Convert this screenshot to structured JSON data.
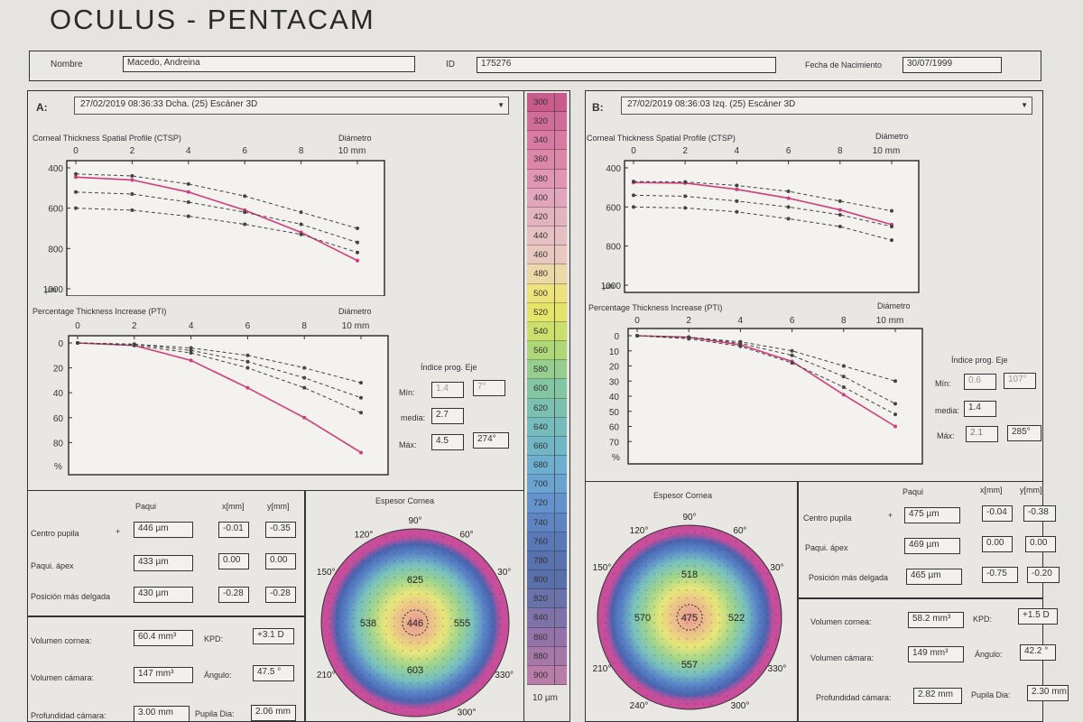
{
  "header": {
    "title": "OCULUS - PENTACAM",
    "nombre_label": "Nombre",
    "nombre_value": "Macedo, Andreina",
    "id_label": "ID",
    "id_value": "175276",
    "fecha_label": "Fecha de Nacimiento",
    "fecha_value": "30/07/1999"
  },
  "panelA": {
    "letter": "A:",
    "scan": "27/02/2019 08:36:33 Dcha.   (25) Escáner 3D",
    "ctsp_title": "Corneal Thickness Spatial Profile (CTSP)",
    "pti_title": "Percentage Thickness Increase (PTI)",
    "diam_label": "Diámetro",
    "diam_unit": "10 mm",
    "um": "µm",
    "pct": "%",
    "indice_label": "Índice prog.  Eje",
    "min_label": "Mín:",
    "min_val": "1.4",
    "min_eje": "7°",
    "media_label": "media:",
    "media_val": "2.7",
    "max_label": "Máx:",
    "max_val": "4.5",
    "max_eje": "274°",
    "paqui_head": "Paqui",
    "x_head": "x[mm]",
    "y_head": "y[mm]",
    "centro_label": "Centro pupila",
    "plus": "+",
    "centro_paqui": "446 µm",
    "centro_x": "-0.01",
    "centro_y": "-0.35",
    "apex_label": "Paqui. ápex",
    "apex_paqui": "433 µm",
    "apex_x": "0.00",
    "apex_y": "0.00",
    "delgada_label": "Posición más delgada",
    "delgada_paqui": "430 µm",
    "delgada_x": "-0.28",
    "delgada_y": "-0.28",
    "vol_cornea_label": "Volumen cornea:",
    "vol_cornea_val": "60.4 mm³",
    "kpd_label": "KPD:",
    "kpd_val": "+3.1 D",
    "vol_camara_label": "Volumen cámara:",
    "vol_camara_val": "147 mm³",
    "angulo_label": "Ángulo:",
    "angulo_val": "47.5 °",
    "prof_label": "Profundidad cámara:",
    "prof_val": "3.00 mm",
    "pupila_label": "Pupila Dia:",
    "pupila_val": "2.06 mm",
    "map_title": "Espesor Cornea",
    "map_center": "446",
    "map_sup": "625",
    "map_inf": "603",
    "map_temp": "538",
    "map_nasal": "555",
    "map_a90": "90°",
    "map_a60": "60°",
    "map_a120": "120°",
    "map_a150": "150°",
    "map_a30": "30°",
    "map_a330": "330°",
    "map_a210": "210°",
    "map_a300": "300°"
  },
  "panelB": {
    "letter": "B:",
    "scan": "27/02/2019 08:36:03 Izq.   (25) Escáner 3D",
    "ctsp_title": "Corneal Thickness Spatial Profile (CTSP)",
    "pti_title": "Percentage Thickness Increase (PTI)",
    "diam_label": "Diámetro",
    "diam_unit": "10 mm",
    "um": "µm",
    "pct": "%",
    "indice_label": "Índice prog.  Eje",
    "min_label": "Mín:",
    "min_val": "0.6",
    "min_eje": "107°",
    "media_label": "media:",
    "media_val": "1.4",
    "max_label": "Máx:",
    "max_val": "2.1",
    "max_eje": "285°",
    "paqui_head": "Paqui",
    "x_head": "x[mm]",
    "y_head": "y[mm]",
    "centro_label": "Centro pupila",
    "plus": "+",
    "centro_paqui": "475 µm",
    "centro_x": "-0.04",
    "centro_y": "-0.38",
    "apex_label": "Paqui. ápex",
    "apex_paqui": "469 µm",
    "apex_x": "0.00",
    "apex_y": "0.00",
    "delgada_label": "Posición más delgada",
    "delgada_paqui": "465 µm",
    "delgada_x": "-0.75",
    "delgada_y": "-0.20",
    "vol_cornea_label": "Volumen cornea:",
    "vol_cornea_val": "58.2 mm³",
    "kpd_label": "KPD:",
    "kpd_val": "+1.5 D",
    "vol_camara_label": "Volumen cámara:",
    "vol_camara_val": "149 mm³",
    "angulo_label": "Ángulo:",
    "angulo_val": "42.2 °",
    "prof_label": "Profundidad cámara:",
    "prof_val": "2.82 mm",
    "pupila_label": "Pupila Dia:",
    "pupila_val": "2.30 mm",
    "map_title": "Espesor Cornea",
    "map_center": "475",
    "map_sup": "518",
    "map_inf": "557",
    "map_temp": "570",
    "map_nasal": "522",
    "map_a90": "90°",
    "map_a60": "60°",
    "map_a120": "120°",
    "map_a150": "150°",
    "map_a30": "30°",
    "map_a330": "330°",
    "map_a210": "210°",
    "map_a300": "300°",
    "map_a240": "240°"
  },
  "scale": {
    "unit": "10 µm",
    "labels": [
      "300",
      "320",
      "340",
      "360",
      "380",
      "400",
      "420",
      "440",
      "460",
      "480",
      "500",
      "520",
      "540",
      "560",
      "580",
      "600",
      "620",
      "640",
      "660",
      "680",
      "700",
      "720",
      "740",
      "760",
      "780",
      "800",
      "820",
      "840",
      "860",
      "880",
      "900"
    ],
    "colors": [
      "#c85a8c",
      "#d06c98",
      "#d87aa2",
      "#dc86a8",
      "#e095b3",
      "#e2a6bc",
      "#e4b3c2",
      "#e6c0c3",
      "#e8c8bf",
      "#ecd8a8",
      "#ede27c",
      "#e4e46a",
      "#cbe06c",
      "#aed878",
      "#96ce90",
      "#84c6a4",
      "#7cc0b0",
      "#76bcbc",
      "#72b6c6",
      "#6eaece",
      "#6aa2d0",
      "#6492cc",
      "#5e84c2",
      "#5a78b6",
      "#5872ae",
      "#5a70aa",
      "#6a72aa",
      "#7e72a8",
      "#9474a8",
      "#a678a8",
      "#b87ca8"
    ]
  },
  "chart_data": [
    {
      "type": "line",
      "panel": "A",
      "title": "Corneal Thickness Spatial Profile (CTSP)",
      "xlabel": "Diámetro 10 mm",
      "ylabel": "µm",
      "x_ticks": [
        "0",
        "2",
        "4",
        "6",
        "8",
        "10 mm"
      ],
      "y_ticks": [
        "400",
        "600",
        "800",
        "1000"
      ],
      "xlim": [
        0,
        10
      ],
      "ylim": [
        400,
        1000
      ],
      "y_inverted": true,
      "x": [
        0,
        2,
        4,
        6,
        8,
        10
      ],
      "series": [
        {
          "values": [
            446,
            460,
            520,
            610,
            720,
            860
          ],
          "color": "#d23c7c",
          "style": "solid"
        },
        {
          "values": [
            430,
            440,
            480,
            540,
            620,
            700
          ],
          "color": "#444444",
          "style": "dashed"
        },
        {
          "values": [
            520,
            530,
            570,
            620,
            680,
            770
          ],
          "color": "#444444",
          "style": "dashed"
        },
        {
          "values": [
            600,
            610,
            640,
            680,
            730,
            820
          ],
          "color": "#444444",
          "style": "dashed"
        }
      ]
    },
    {
      "type": "line",
      "panel": "A",
      "title": "Percentage Thickness Increase (PTI)",
      "xlabel": "Diámetro 10 mm",
      "ylabel": "%",
      "x_ticks": [
        "0",
        "2",
        "4",
        "6",
        "8",
        "10 mm"
      ],
      "y_ticks": [
        "0",
        "20",
        "40",
        "60",
        "80"
      ],
      "xlim": [
        0,
        10
      ],
      "ylim": [
        0,
        100
      ],
      "y_inverted": true,
      "x": [
        0,
        2,
        4,
        6,
        8,
        10
      ],
      "series": [
        {
          "values": [
            0,
            2,
            14,
            36,
            60,
            88
          ],
          "color": "#d23c7c",
          "style": "solid"
        },
        {
          "values": [
            0,
            1,
            4,
            10,
            20,
            32
          ],
          "color": "#444444",
          "style": "dashed"
        },
        {
          "values": [
            0,
            1,
            6,
            15,
            28,
            44
          ],
          "color": "#444444",
          "style": "dashed"
        },
        {
          "values": [
            0,
            2,
            8,
            20,
            36,
            56
          ],
          "color": "#444444",
          "style": "dashed"
        }
      ]
    },
    {
      "type": "line",
      "panel": "B",
      "title": "Corneal Thickness Spatial Profile (CTSP)",
      "xlabel": "Diámetro 10 mm",
      "ylabel": "µm",
      "x_ticks": [
        "0",
        "2",
        "4",
        "6",
        "8",
        "10 mm"
      ],
      "y_ticks": [
        "400",
        "600",
        "800",
        "1000"
      ],
      "xlim": [
        0,
        10
      ],
      "ylim": [
        400,
        1000
      ],
      "y_inverted": true,
      "x": [
        0,
        2,
        4,
        6,
        8,
        10
      ],
      "series": [
        {
          "values": [
            475,
            478,
            510,
            555,
            615,
            690
          ],
          "color": "#d23c7c",
          "style": "solid"
        },
        {
          "values": [
            470,
            472,
            490,
            520,
            570,
            620
          ],
          "color": "#444444",
          "style": "dashed"
        },
        {
          "values": [
            540,
            545,
            570,
            600,
            640,
            700
          ],
          "color": "#444444",
          "style": "dashed"
        },
        {
          "values": [
            600,
            605,
            625,
            660,
            700,
            770
          ],
          "color": "#444444",
          "style": "dashed"
        }
      ]
    },
    {
      "type": "line",
      "panel": "B",
      "title": "Percentage Thickness Increase (PTI)",
      "xlabel": "Diámetro 10 mm",
      "ylabel": "%",
      "x_ticks": [
        "0",
        "2",
        "4",
        "6",
        "8",
        "10 mm"
      ],
      "y_ticks": [
        "0",
        "10",
        "20",
        "30",
        "40",
        "50",
        "60",
        "70"
      ],
      "xlim": [
        0,
        10
      ],
      "ylim": [
        0,
        80
      ],
      "y_inverted": true,
      "x": [
        0,
        2,
        4,
        6,
        8,
        10
      ],
      "series": [
        {
          "values": [
            0,
            1,
            6,
            17,
            39,
            60
          ],
          "color": "#d23c7c",
          "style": "solid"
        },
        {
          "values": [
            0,
            1,
            4,
            10,
            20,
            30
          ],
          "color": "#444444",
          "style": "dashed"
        },
        {
          "values": [
            0,
            1,
            5,
            13,
            27,
            45
          ],
          "color": "#444444",
          "style": "dashed"
        },
        {
          "values": [
            0,
            2,
            7,
            18,
            34,
            52
          ],
          "color": "#444444",
          "style": "dashed"
        }
      ]
    }
  ]
}
